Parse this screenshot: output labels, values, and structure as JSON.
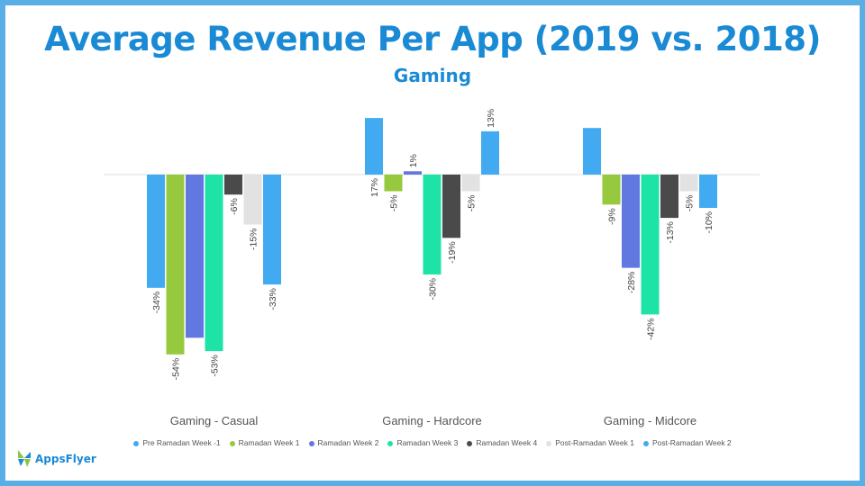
{
  "title": "Average Revenue Per App (2019 vs. 2018)",
  "subtitle": "Gaming",
  "chart_data": {
    "type": "bar",
    "categories": [
      "Gaming - Casual",
      "Gaming - Hardcore",
      "Gaming - Midcore"
    ],
    "series": [
      {
        "name": "Pre Ramadan Week -1",
        "color": "#42aaf0",
        "values": [
          -34,
          17,
          14
        ]
      },
      {
        "name": "Ramadan Week 1",
        "color": "#96c93d",
        "values": [
          -54,
          -5,
          -9
        ]
      },
      {
        "name": "Ramadan Week 2",
        "color": "#6178e0",
        "values": [
          -49,
          1,
          -28
        ]
      },
      {
        "name": "Ramadan Week 3",
        "color": "#1de3a7",
        "values": [
          -53,
          -30,
          -42
        ]
      },
      {
        "name": "Ramadan Week 4",
        "color": "#4a4a4a",
        "values": [
          -6,
          -19,
          -13
        ]
      },
      {
        "name": "Post-Ramadan Week 1",
        "color": "#e2e2e2",
        "values": [
          -15,
          -5,
          -5
        ]
      },
      {
        "name": "Post-Ramadan Week 2",
        "color": "#42aaf0",
        "values": [
          -33,
          13,
          -10
        ]
      }
    ],
    "hidden_labels": [
      [
        0,
        2
      ],
      [
        2,
        0
      ]
    ],
    "label_suffix": "%",
    "ylim": [
      -60,
      20
    ],
    "xlabel": "",
    "ylabel": "",
    "legend": "bottom"
  },
  "logo": {
    "text": "AppsFlyer"
  }
}
